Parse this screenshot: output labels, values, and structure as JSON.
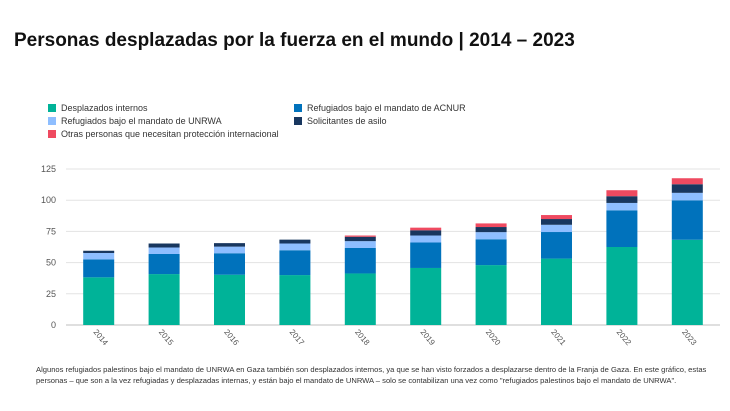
{
  "title": "Personas desplazadas por la fuerza en el mundo | 2014 – 2023",
  "footnote": "Algunos refugiados palestinos bajo el mandato de UNRWA en Gaza también son desplazados internos, ya que se han visto forzados a desplazarse dentro de la Franja de Gaza. En este gráfico, estas personas – que son a la vez refugiadas y desplazadas internas, y están bajo el mandato de UNRWA – solo se contabilizan una vez como \"refugiados palestinos bajo el mandato de UNRWA\".",
  "chart_data": {
    "type": "bar",
    "stacked": true,
    "title": "Personas desplazadas por la fuerza en el mundo | 2014 – 2023",
    "xlabel": "",
    "ylabel": "",
    "ylim": [
      0,
      125
    ],
    "yticks": [
      0,
      25,
      50,
      75,
      100,
      125
    ],
    "grid": true,
    "legend_position": "top-left",
    "categories": [
      "2014",
      "2015",
      "2016",
      "2017",
      "2018",
      "2019",
      "2020",
      "2021",
      "2022",
      "2023"
    ],
    "series": [
      {
        "name": "Desplazados internos",
        "color": "#00b398",
        "values": [
          38.2,
          40.8,
          40.3,
          40.0,
          41.3,
          45.7,
          48.0,
          53.2,
          62.5,
          68.3
        ]
      },
      {
        "name": "Refugiados bajo el mandato de ACNUR",
        "color": "#0072bc",
        "values": [
          14.4,
          16.1,
          17.2,
          19.9,
          20.4,
          20.4,
          20.7,
          21.3,
          29.4,
          31.6
        ]
      },
      {
        "name": "Refugiados bajo el mandato de UNRWA",
        "color": "#8ebeff",
        "values": [
          5.1,
          5.2,
          5.3,
          5.4,
          5.5,
          5.6,
          5.7,
          5.8,
          5.9,
          6.0
        ]
      },
      {
        "name": "Solicitantes de asilo",
        "color": "#18375f",
        "values": [
          1.8,
          3.2,
          2.8,
          3.1,
          3.5,
          4.2,
          4.1,
          4.6,
          5.4,
          6.9
        ]
      },
      {
        "name": "Otras personas que necesitan protección internacional",
        "color": "#ef4a60",
        "values": [
          0,
          0,
          0,
          0,
          1.0,
          2.1,
          2.9,
          3.2,
          4.8,
          4.8
        ]
      }
    ]
  }
}
